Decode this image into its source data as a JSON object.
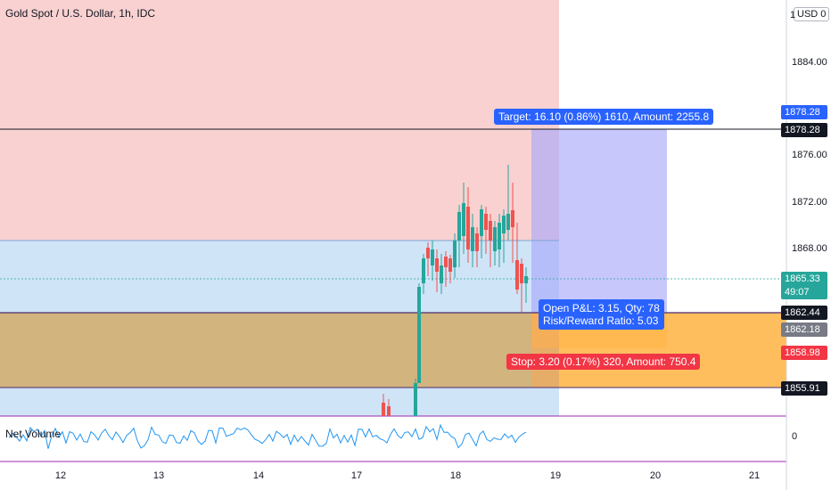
{
  "header": {
    "title": "Gold Spot / U.S. Dollar, 1h, IDC",
    "currency": "USD",
    "currency_suffix": "0"
  },
  "position": {
    "target_label": "Target: 16.10 (0.86%) 1610, Amount: 2255.8",
    "pnl_line1": "Open P&L: 3.15, Qty: 78",
    "pnl_line2": "Risk/Reward Ratio: 5.03",
    "stop_label": "Stop: 3.20 (0.17%) 320, Amount: 750.4"
  },
  "price_axis": {
    "ticks": [
      "1884.00",
      "1876.00",
      "1872.00",
      "1868.00"
    ],
    "top_value": "1",
    "tags": [
      {
        "value": "1878.28",
        "bg": "#2962ff",
        "fg": "#ffffff"
      },
      {
        "value": "1878.28",
        "bg": "#131722",
        "fg": "#ffffff"
      },
      {
        "value": "1865.33",
        "bg": "#26a69a",
        "fg": "#ffffff"
      },
      {
        "value": "49:07",
        "bg": "#26a69a",
        "fg": "#ffffff"
      },
      {
        "value": "1862.44",
        "bg": "#131722",
        "fg": "#ffffff"
      },
      {
        "value": "1862.18",
        "bg": "#787b86",
        "fg": "#ffffff"
      },
      {
        "value": "1858.98",
        "bg": "#f23645",
        "fg": "#ffffff"
      },
      {
        "value": "1855.91",
        "bg": "#131722",
        "fg": "#ffffff"
      }
    ]
  },
  "volume": {
    "label": "Net Volume",
    "axis_zero": "0"
  },
  "time_axis": {
    "labels": [
      "12",
      "13",
      "14",
      "17",
      "18",
      "19",
      "20",
      "21"
    ]
  },
  "colors": {
    "up": "#26a69a",
    "down": "#ef5350",
    "target_zone": "#2962ff",
    "stop_zone": "#f23645"
  }
}
